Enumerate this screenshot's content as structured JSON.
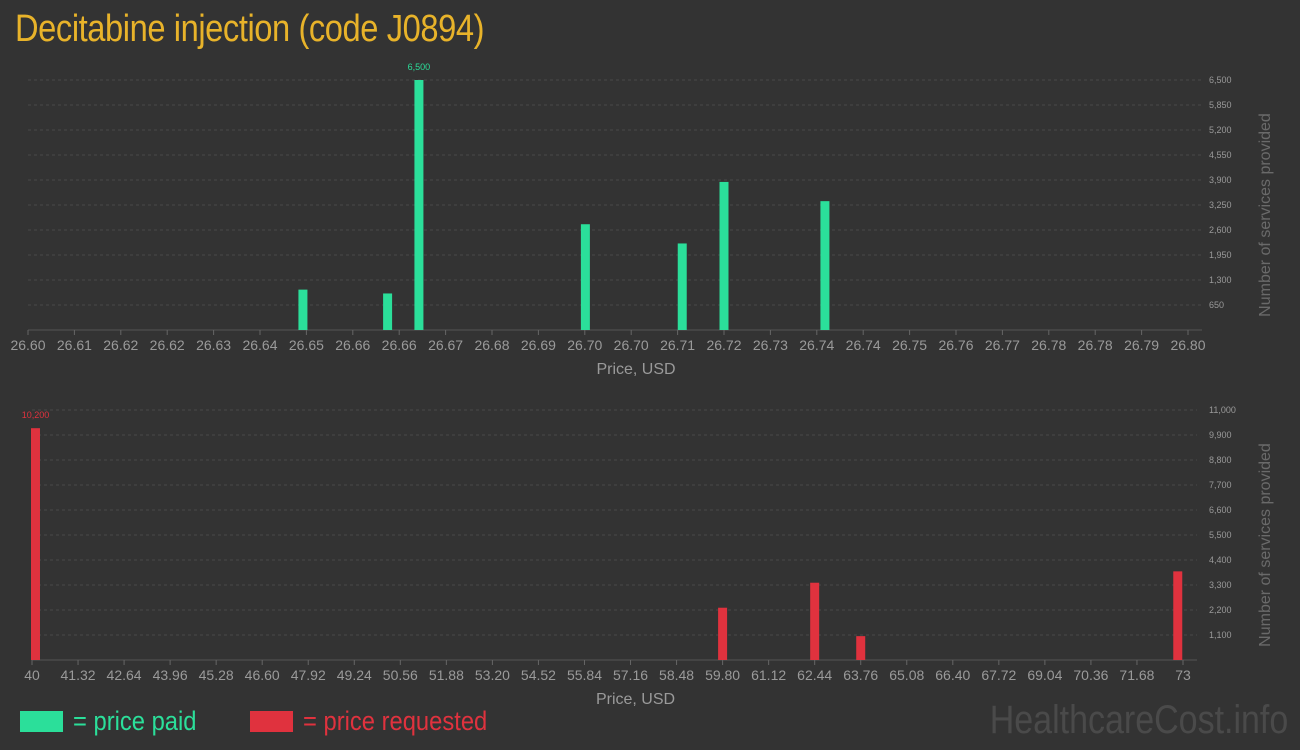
{
  "title": "Decitabine injection (code J0894)",
  "legend": {
    "paid_label": "= price paid",
    "requested_label": "= price requested",
    "paid_color": "#2bdf9a",
    "requested_color": "#e0323e"
  },
  "brand": "HealthcareCost.info",
  "colors": {
    "background": "#333333",
    "title": "#e8b32a",
    "axis_text": "#9a9a9a",
    "grid": "#4a4a4a"
  },
  "chart_data": [
    {
      "type": "bar",
      "name": "price paid",
      "xlabel": "Price, USD",
      "ylabel": "Number of services provided",
      "x_tick_labels": [
        "26.60",
        "26.61",
        "26.62",
        "26.62",
        "26.63",
        "26.64",
        "26.65",
        "26.66",
        "26.66",
        "26.67",
        "26.68",
        "26.69",
        "26.70",
        "26.70",
        "26.71",
        "26.72",
        "26.73",
        "26.74",
        "26.74",
        "26.75",
        "26.76",
        "26.77",
        "26.78",
        "26.78",
        "26.79",
        "26.80"
      ],
      "y_ticks": [
        "650",
        "1,300",
        "1,950",
        "2,600",
        "3,250",
        "3,900",
        "4,550",
        "5,200",
        "5,850",
        "6,500"
      ],
      "ylim": [
        0,
        6500
      ],
      "x_range": [
        26.6,
        26.8
      ],
      "bars": [
        {
          "x": 26.6474,
          "y": 1050
        },
        {
          "x": 26.662,
          "y": 950
        },
        {
          "x": 26.6674,
          "y": 6500
        },
        {
          "x": 26.6961,
          "y": 2750
        },
        {
          "x": 26.7128,
          "y": 2250
        },
        {
          "x": 26.72,
          "y": 3850
        },
        {
          "x": 26.7374,
          "y": 3350
        }
      ],
      "peak_label": "6,500",
      "color": "#2bdf9a"
    },
    {
      "type": "bar",
      "name": "price requested",
      "xlabel": "Price, USD",
      "ylabel": "Number of services provided",
      "x_tick_labels": [
        "40",
        "41.32",
        "42.64",
        "43.96",
        "45.28",
        "46.60",
        "47.92",
        "49.24",
        "50.56",
        "51.88",
        "53.20",
        "54.52",
        "55.84",
        "57.16",
        "58.48",
        "59.80",
        "61.12",
        "62.44",
        "63.76",
        "65.08",
        "66.40",
        "67.72",
        "69.04",
        "70.36",
        "71.68",
        "73"
      ],
      "y_ticks": [
        "1,100",
        "2,200",
        "3,300",
        "4,400",
        "5,500",
        "6,600",
        "7,700",
        "8,800",
        "9,900",
        "11,000"
      ],
      "ylim": [
        0,
        11000
      ],
      "x_range": [
        40,
        73
      ],
      "bars": [
        {
          "x": 40.1,
          "y": 10200
        },
        {
          "x": 59.8,
          "y": 2300
        },
        {
          "x": 62.44,
          "y": 3400
        },
        {
          "x": 63.76,
          "y": 1050
        },
        {
          "x": 72.85,
          "y": 3900
        }
      ],
      "peak_label": "10,200",
      "color": "#e0323e"
    }
  ]
}
